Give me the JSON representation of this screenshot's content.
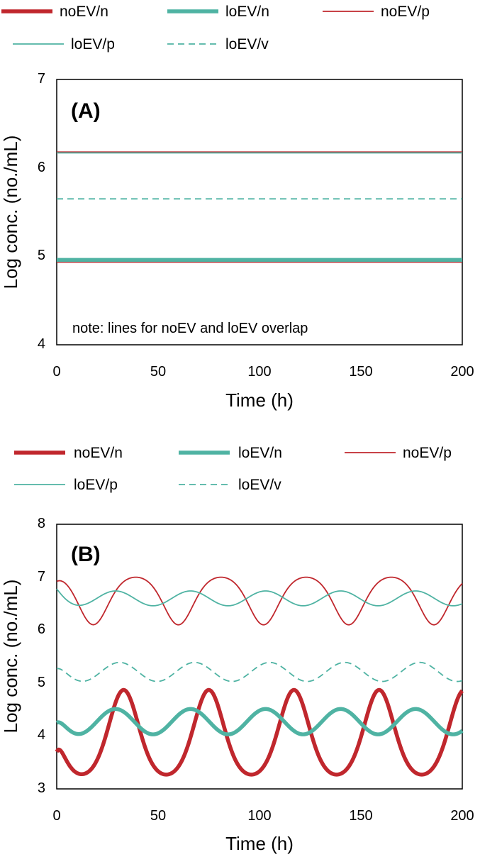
{
  "colors": {
    "noEV": "#c0272d",
    "loEV": "#4fb3a3"
  },
  "legend_entries": [
    {
      "name": "noEV/n",
      "color": "#c0272d",
      "style": "thick"
    },
    {
      "name": "loEV/n",
      "color": "#4fb3a3",
      "style": "thick"
    },
    {
      "name": "noEV/p",
      "color": "#c0272d",
      "style": "thin"
    },
    {
      "name": "loEV/p",
      "color": "#4fb3a3",
      "style": "thin"
    },
    {
      "name": "loEV/v",
      "color": "#4fb3a3",
      "style": "dashed"
    }
  ],
  "chart_data": [
    {
      "type": "line",
      "panel_label": "(A)",
      "xlabel": "Time (h)",
      "ylabel": "Log conc. (no./mL)",
      "xlim": [
        0,
        200
      ],
      "ylim": [
        4,
        7
      ],
      "xticks": [
        0,
        50,
        100,
        150,
        200
      ],
      "yticks": [
        4,
        5,
        6,
        7
      ],
      "annotation": "note: lines for noEV and loEV overlap",
      "series": [
        {
          "name": "noEV/n",
          "kind": "constant",
          "value": 4.95
        },
        {
          "name": "loEV/n",
          "kind": "constant",
          "value": 4.96
        },
        {
          "name": "noEV/p",
          "kind": "constant",
          "value": 6.18
        },
        {
          "name": "loEV/p",
          "kind": "constant",
          "value": 6.17
        },
        {
          "name": "loEV/v",
          "kind": "constant",
          "value": 5.65
        }
      ]
    },
    {
      "type": "line",
      "panel_label": "(B)",
      "xlabel": "Time (h)",
      "ylabel": "Log conc. (no./mL)",
      "xlim": [
        0,
        200
      ],
      "ylim": [
        3,
        8
      ],
      "xticks": [
        0,
        50,
        100,
        150,
        200
      ],
      "yticks": [
        3,
        4,
        5,
        6,
        7,
        8
      ],
      "series": [
        {
          "name": "noEV/n",
          "kind": "oscillation",
          "mean": 4.07,
          "amplitude": 0.8,
          "period": 42,
          "peak_time": 33,
          "sharpness": 0.35,
          "start": 3.7
        },
        {
          "name": "loEV/n",
          "kind": "oscillation",
          "mean": 4.27,
          "amplitude": 0.24,
          "period": 37,
          "peak_time": 29,
          "sharpness": 0,
          "start": 4.25
        },
        {
          "name": "noEV/p",
          "kind": "oscillation",
          "mean": 6.55,
          "amplitude": 0.45,
          "period": 42,
          "peak_time": 39,
          "sharpness": -0.35,
          "start": 6.92
        },
        {
          "name": "loEV/p",
          "kind": "oscillation",
          "mean": 6.6,
          "amplitude": 0.14,
          "period": 37,
          "peak_time": 29,
          "sharpness": 0,
          "start": 6.78
        },
        {
          "name": "loEV/v",
          "kind": "oscillation",
          "mean": 5.21,
          "amplitude": 0.18,
          "period": 37,
          "peak_time": 31,
          "sharpness": 0,
          "start": 5.27
        }
      ]
    }
  ]
}
